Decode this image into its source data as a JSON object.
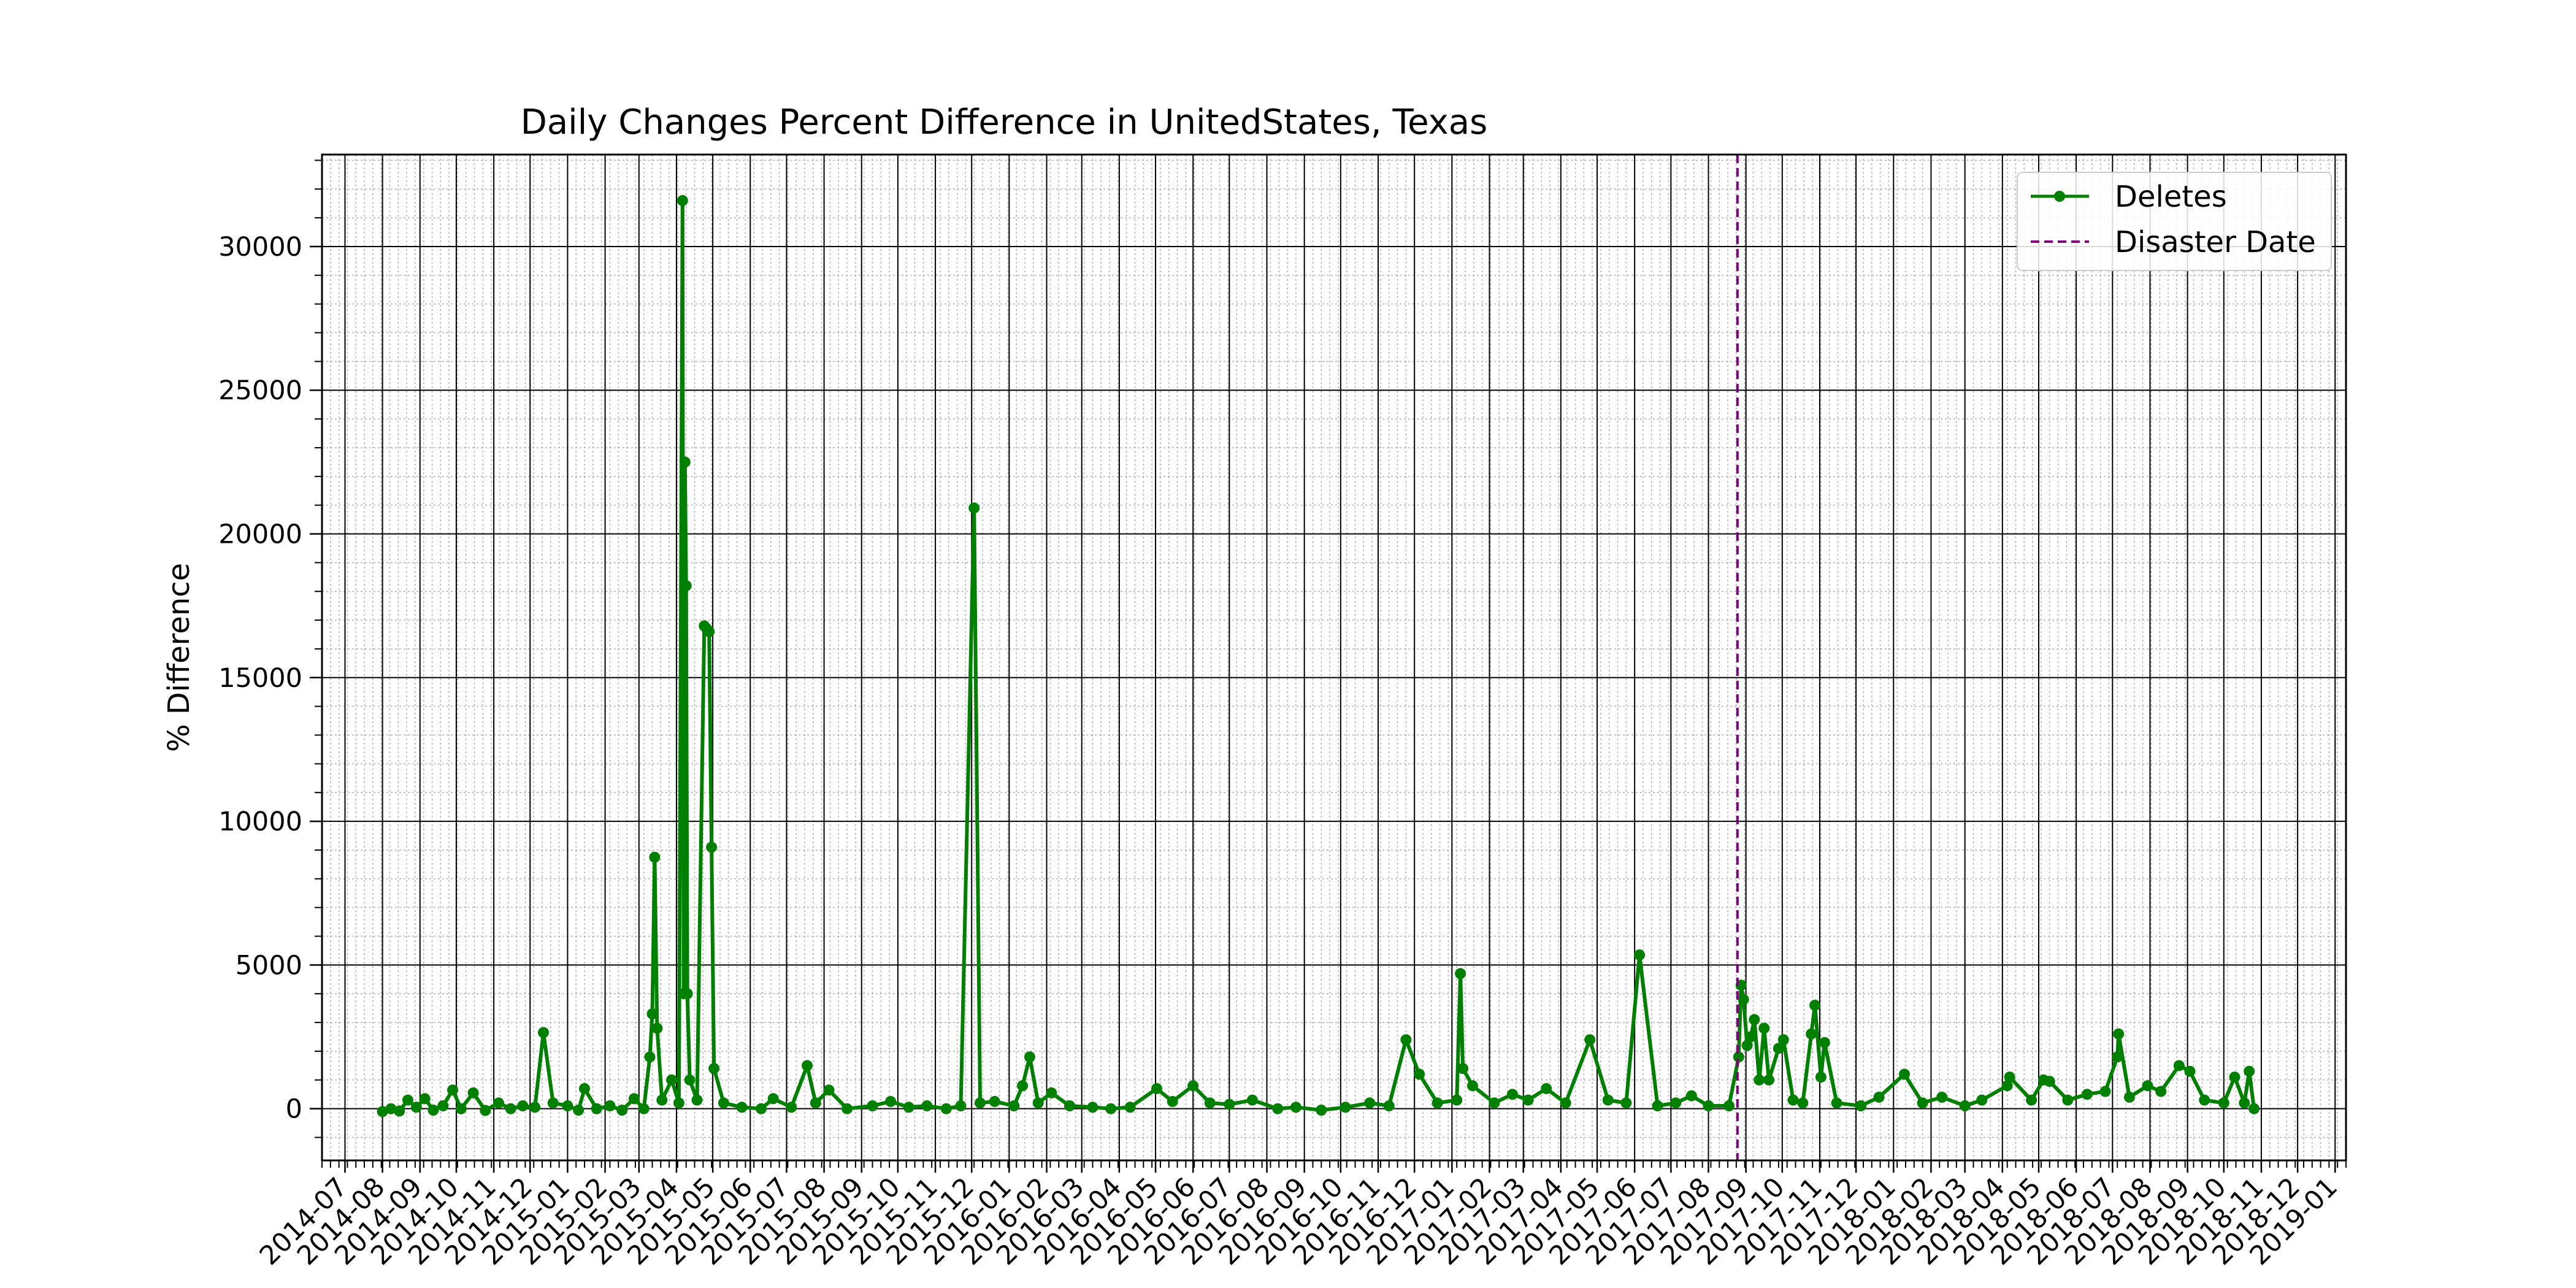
{
  "chart_data": {
    "type": "line",
    "title": "Daily Changes Percent Difference in UnitedStates, Texas",
    "xlabel": "",
    "ylabel": "% Difference",
    "xlim": [
      "2014-06-12",
      "2019-01-10"
    ],
    "ylim": [
      -1800,
      33200
    ],
    "y_ticks": [
      0,
      5000,
      10000,
      15000,
      20000,
      25000,
      30000
    ],
    "x_ticks": [
      "2014-07",
      "2014-08",
      "2014-09",
      "2014-10",
      "2014-11",
      "2014-12",
      "2015-01",
      "2015-02",
      "2015-03",
      "2015-04",
      "2015-05",
      "2015-06",
      "2015-07",
      "2015-08",
      "2015-09",
      "2015-10",
      "2015-11",
      "2015-12",
      "2016-01",
      "2016-02",
      "2016-03",
      "2016-04",
      "2016-05",
      "2016-06",
      "2016-07",
      "2016-08",
      "2016-09",
      "2016-10",
      "2016-11",
      "2016-12",
      "2017-01",
      "2017-02",
      "2017-03",
      "2017-04",
      "2017-05",
      "2017-06",
      "2017-07",
      "2017-08",
      "2017-09",
      "2017-10",
      "2017-11",
      "2017-12",
      "2018-01",
      "2018-02",
      "2018-03",
      "2018-04",
      "2018-05",
      "2018-06",
      "2018-07",
      "2018-08",
      "2018-09",
      "2018-10",
      "2018-11",
      "2018-12",
      "2019-01"
    ],
    "grid": true,
    "legend_position": "top-right",
    "series": [
      {
        "name": "Deletes",
        "color": "#008000",
        "marker": "circle",
        "points": [
          [
            "2014-08-01",
            -100
          ],
          [
            "2014-08-08",
            0
          ],
          [
            "2014-08-15",
            -80
          ],
          [
            "2014-08-22",
            300
          ],
          [
            "2014-08-29",
            50
          ],
          [
            "2014-09-05",
            350
          ],
          [
            "2014-09-12",
            -50
          ],
          [
            "2014-09-20",
            100
          ],
          [
            "2014-09-28",
            650
          ],
          [
            "2014-10-05",
            0
          ],
          [
            "2014-10-15",
            550
          ],
          [
            "2014-10-25",
            -60
          ],
          [
            "2014-11-05",
            200
          ],
          [
            "2014-11-15",
            0
          ],
          [
            "2014-11-25",
            100
          ],
          [
            "2014-12-05",
            50
          ],
          [
            "2014-12-12",
            2650
          ],
          [
            "2014-12-20",
            200
          ],
          [
            "2015-01-01",
            100
          ],
          [
            "2015-01-10",
            -50
          ],
          [
            "2015-01-15",
            700
          ],
          [
            "2015-01-25",
            0
          ],
          [
            "2015-02-05",
            100
          ],
          [
            "2015-02-15",
            -50
          ],
          [
            "2015-02-25",
            350
          ],
          [
            "2015-03-05",
            0
          ],
          [
            "2015-03-10",
            1800
          ],
          [
            "2015-03-12",
            3300
          ],
          [
            "2015-03-14",
            8750
          ],
          [
            "2015-03-16",
            2800
          ],
          [
            "2015-03-20",
            300
          ],
          [
            "2015-03-28",
            1000
          ],
          [
            "2015-04-03",
            200
          ],
          [
            "2015-04-06",
            31600
          ],
          [
            "2015-04-07",
            4000
          ],
          [
            "2015-04-08",
            22500
          ],
          [
            "2015-04-09",
            18200
          ],
          [
            "2015-04-10",
            4000
          ],
          [
            "2015-04-12",
            1000
          ],
          [
            "2015-04-18",
            300
          ],
          [
            "2015-04-24",
            16800
          ],
          [
            "2015-04-26",
            16700
          ],
          [
            "2015-04-28",
            16600
          ],
          [
            "2015-04-30",
            9100
          ],
          [
            "2015-05-02",
            1400
          ],
          [
            "2015-05-10",
            200
          ],
          [
            "2015-05-25",
            50
          ],
          [
            "2015-06-10",
            0
          ],
          [
            "2015-06-20",
            350
          ],
          [
            "2015-07-05",
            50
          ],
          [
            "2015-07-18",
            1500
          ],
          [
            "2015-07-25",
            200
          ],
          [
            "2015-08-05",
            650
          ],
          [
            "2015-08-20",
            0
          ],
          [
            "2015-09-10",
            100
          ],
          [
            "2015-09-25",
            250
          ],
          [
            "2015-10-10",
            50
          ],
          [
            "2015-10-25",
            100
          ],
          [
            "2015-11-10",
            0
          ],
          [
            "2015-11-22",
            100
          ],
          [
            "2015-12-03",
            20900
          ],
          [
            "2015-12-08",
            200
          ],
          [
            "2015-12-20",
            250
          ],
          [
            "2016-01-05",
            100
          ],
          [
            "2016-01-12",
            800
          ],
          [
            "2016-01-18",
            1800
          ],
          [
            "2016-01-25",
            200
          ],
          [
            "2016-02-05",
            550
          ],
          [
            "2016-02-20",
            100
          ],
          [
            "2016-03-10",
            50
          ],
          [
            "2016-03-25",
            0
          ],
          [
            "2016-04-10",
            50
          ],
          [
            "2016-05-02",
            700
          ],
          [
            "2016-05-15",
            250
          ],
          [
            "2016-06-01",
            800
          ],
          [
            "2016-06-15",
            200
          ],
          [
            "2016-07-01",
            150
          ],
          [
            "2016-07-20",
            300
          ],
          [
            "2016-08-10",
            0
          ],
          [
            "2016-08-25",
            50
          ],
          [
            "2016-09-15",
            -50
          ],
          [
            "2016-10-05",
            50
          ],
          [
            "2016-10-25",
            200
          ],
          [
            "2016-11-10",
            100
          ],
          [
            "2016-11-24",
            2400
          ],
          [
            "2016-12-05",
            1200
          ],
          [
            "2016-12-20",
            200
          ],
          [
            "2017-01-05",
            300
          ],
          [
            "2017-01-08",
            4700
          ],
          [
            "2017-01-10",
            1400
          ],
          [
            "2017-01-18",
            800
          ],
          [
            "2017-02-05",
            200
          ],
          [
            "2017-02-20",
            500
          ],
          [
            "2017-03-05",
            300
          ],
          [
            "2017-03-20",
            700
          ],
          [
            "2017-04-05",
            200
          ],
          [
            "2017-04-25",
            2400
          ],
          [
            "2017-05-10",
            300
          ],
          [
            "2017-05-25",
            200
          ],
          [
            "2017-06-05",
            5350
          ],
          [
            "2017-06-20",
            100
          ],
          [
            "2017-07-05",
            200
          ],
          [
            "2017-07-18",
            450
          ],
          [
            "2017-08-01",
            100
          ],
          [
            "2017-08-18",
            100
          ],
          [
            "2017-08-26",
            1800
          ],
          [
            "2017-08-28",
            4300
          ],
          [
            "2017-08-30",
            3800
          ],
          [
            "2017-09-02",
            2200
          ],
          [
            "2017-09-05",
            2500
          ],
          [
            "2017-09-08",
            3100
          ],
          [
            "2017-09-12",
            1000
          ],
          [
            "2017-09-16",
            2800
          ],
          [
            "2017-09-20",
            1000
          ],
          [
            "2017-09-28",
            2100
          ],
          [
            "2017-10-02",
            2400
          ],
          [
            "2017-10-10",
            300
          ],
          [
            "2017-10-18",
            200
          ],
          [
            "2017-10-25",
            2600
          ],
          [
            "2017-10-28",
            3600
          ],
          [
            "2017-11-02",
            1100
          ],
          [
            "2017-11-05",
            2300
          ],
          [
            "2017-11-15",
            200
          ],
          [
            "2017-12-05",
            100
          ],
          [
            "2017-12-20",
            400
          ],
          [
            "2018-01-10",
            1200
          ],
          [
            "2018-01-25",
            200
          ],
          [
            "2018-02-10",
            400
          ],
          [
            "2018-03-01",
            100
          ],
          [
            "2018-03-15",
            300
          ],
          [
            "2018-04-05",
            800
          ],
          [
            "2018-04-07",
            1100
          ],
          [
            "2018-04-25",
            300
          ],
          [
            "2018-05-05",
            1000
          ],
          [
            "2018-05-10",
            950
          ],
          [
            "2018-05-25",
            300
          ],
          [
            "2018-06-10",
            500
          ],
          [
            "2018-06-25",
            600
          ],
          [
            "2018-07-05",
            1800
          ],
          [
            "2018-07-06",
            2600
          ],
          [
            "2018-07-15",
            400
          ],
          [
            "2018-07-30",
            800
          ],
          [
            "2018-08-10",
            600
          ],
          [
            "2018-08-25",
            1500
          ],
          [
            "2018-09-03",
            1300
          ],
          [
            "2018-09-15",
            300
          ],
          [
            "2018-10-01",
            200
          ],
          [
            "2018-10-10",
            1100
          ],
          [
            "2018-10-18",
            200
          ],
          [
            "2018-10-22",
            1300
          ],
          [
            "2018-10-26",
            0
          ]
        ]
      },
      {
        "name": "Disaster Date",
        "color": "#800080",
        "style": "dashed",
        "vertical_line_x": "2017-08-25"
      }
    ]
  }
}
